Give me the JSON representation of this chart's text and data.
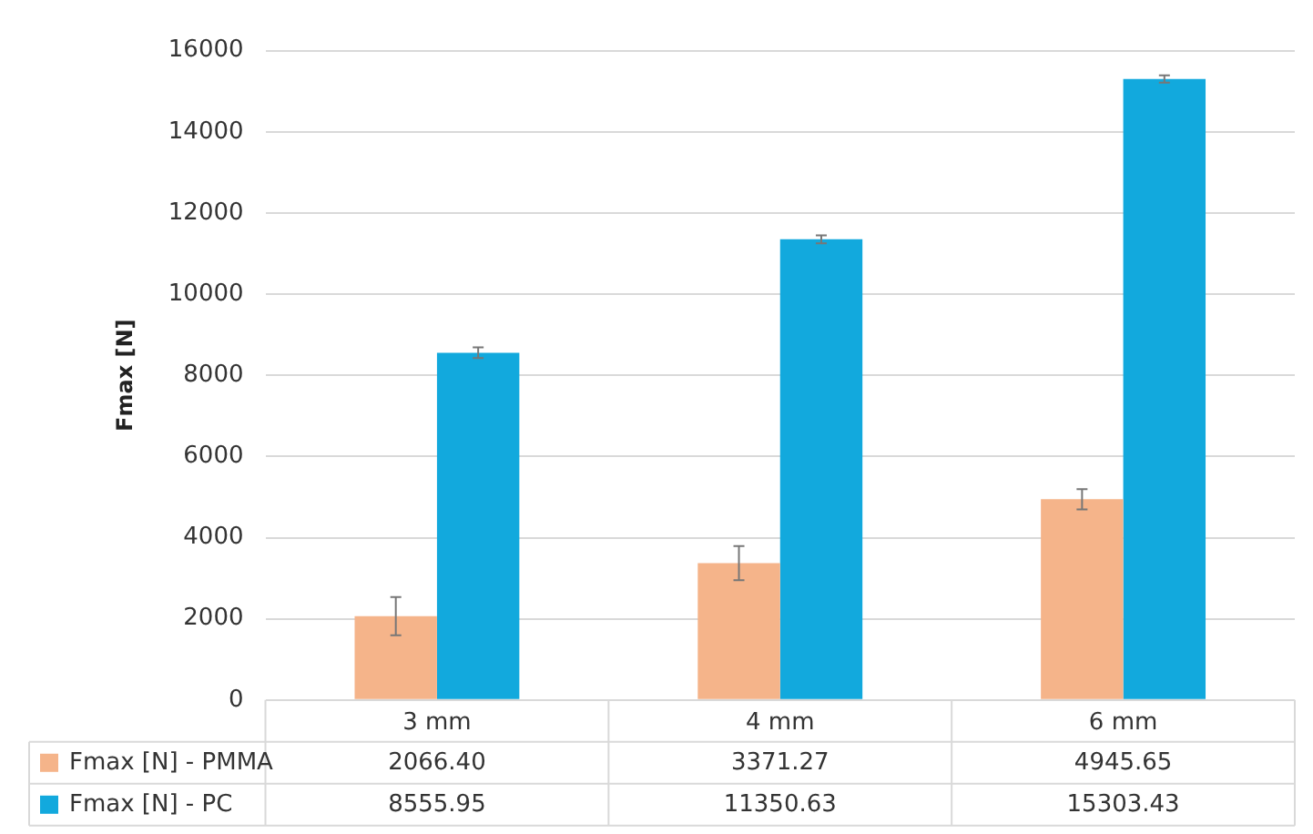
{
  "chart_data": {
    "type": "bar",
    "ylabel": "Fmax [N]",
    "categories": [
      "3 mm",
      "4 mm",
      "6 mm"
    ],
    "series": [
      {
        "name": "Fmax [N] - PMMA",
        "color": "#f5b48a",
        "values": [
          2066.4,
          3371.27,
          4945.65
        ],
        "errors": [
          470,
          420,
          250
        ],
        "value_labels": [
          "2066.40",
          "3371.27",
          "4945.65"
        ]
      },
      {
        "name": "Fmax [N] - PC",
        "color": "#12a9dd",
        "values": [
          8555.95,
          11350.63,
          15303.43
        ],
        "errors": [
          130,
          100,
          90
        ],
        "value_labels": [
          "8555.95",
          "11350.63",
          "15303.43"
        ]
      }
    ],
    "ylim": [
      0,
      16000
    ],
    "yticks": [
      0,
      2000,
      4000,
      6000,
      8000,
      10000,
      12000,
      14000,
      16000
    ],
    "grid": "y",
    "legend": "bottom left"
  }
}
